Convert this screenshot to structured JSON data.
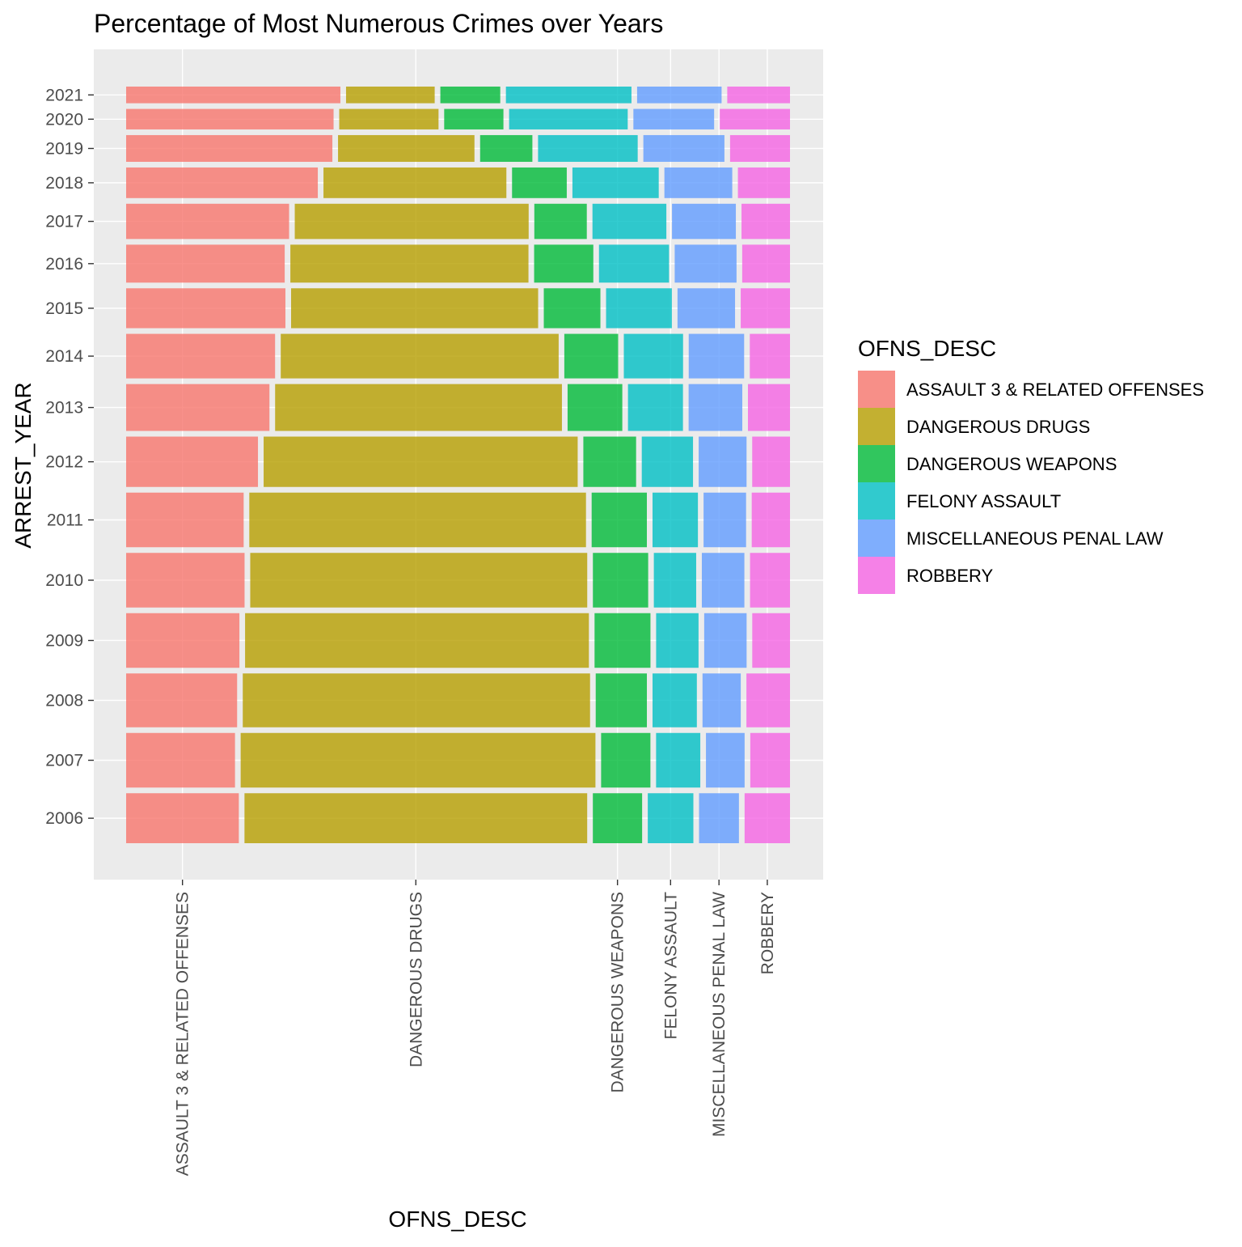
{
  "chart_data": {
    "type": "bar",
    "subtype": "mosaic",
    "title": "Percentage of Most Numerous Crimes over Years",
    "xlabel": "OFNS_DESC",
    "ylabel": "ARREST_YEAR",
    "grid": true,
    "legend": {
      "title": "OFNS_DESC",
      "placement": "right"
    },
    "categories": [
      "ASSAULT 3 & RELATED OFFENSES",
      "DANGEROUS DRUGS",
      "DANGEROUS WEAPONS",
      "FELONY ASSAULT",
      "MISCELLANEOUS PENAL LAW",
      "ROBBERY"
    ],
    "colors": [
      "#F8766D",
      "#B79F00",
      "#00BA38",
      "#00BFC4",
      "#619CFF",
      "#F564E3"
    ],
    "years": [
      "2006",
      "2007",
      "2008",
      "2009",
      "2010",
      "2011",
      "2012",
      "2013",
      "2014",
      "2015",
      "2016",
      "2017",
      "2018",
      "2019",
      "2020",
      "2021"
    ],
    "year_share_of_total": [
      0.0645,
      0.0705,
      0.0695,
      0.0705,
      0.0705,
      0.0705,
      0.065,
      0.0605,
      0.0575,
      0.0515,
      0.049,
      0.0455,
      0.0395,
      0.0345,
      0.0265,
      0.0215
    ],
    "series": [
      {
        "year": "2006",
        "values": [
          0.172,
          0.5231,
          0.0752,
          0.0696,
          0.0609,
          0.0693
        ]
      },
      {
        "year": "2007",
        "values": [
          0.1647,
          0.5368,
          0.0746,
          0.0669,
          0.0585,
          0.0601
        ]
      },
      {
        "year": "2008",
        "values": [
          0.1683,
          0.5267,
          0.0776,
          0.0672,
          0.058,
          0.0661
        ]
      },
      {
        "year": "2009",
        "values": [
          0.172,
          0.5221,
          0.0849,
          0.0644,
          0.0644,
          0.0573
        ]
      },
      {
        "year": "2010",
        "values": [
          0.1793,
          0.5102,
          0.0837,
          0.0641,
          0.0644,
          0.0605
        ]
      },
      {
        "year": "2011",
        "values": [
          0.1781,
          0.5103,
          0.0837,
          0.0688,
          0.0644,
          0.058
        ]
      },
      {
        "year": "2012",
        "values": [
          0.1999,
          0.4762,
          0.08,
          0.0777,
          0.0726,
          0.0573
        ]
      },
      {
        "year": "2013",
        "values": [
          0.2171,
          0.4345,
          0.0829,
          0.0833,
          0.0813,
          0.0637
        ]
      },
      {
        "year": "2014",
        "values": [
          0.2268,
          0.4232,
          0.082,
          0.0902,
          0.0844,
          0.0612
        ]
      },
      {
        "year": "2015",
        "values": [
          0.2414,
          0.3744,
          0.0858,
          0.0997,
          0.0872,
          0.0747
        ]
      },
      {
        "year": "2016",
        "values": [
          0.2408,
          0.3616,
          0.0899,
          0.1064,
          0.0939,
          0.0726
        ]
      },
      {
        "year": "2017",
        "values": [
          0.2481,
          0.3561,
          0.0799,
          0.1125,
          0.0972,
          0.0738
        ]
      },
      {
        "year": "2018",
        "values": [
          0.2907,
          0.2774,
          0.083,
          0.1309,
          0.1029,
          0.079
        ]
      },
      {
        "year": "2019",
        "values": [
          0.3129,
          0.207,
          0.0793,
          0.1512,
          0.123,
          0.0909
        ]
      },
      {
        "year": "2020",
        "values": [
          0.3144,
          0.1505,
          0.0898,
          0.1798,
          0.1224,
          0.1064
        ]
      },
      {
        "year": "2021",
        "values": [
          0.3251,
          0.1345,
          0.0909,
          0.1905,
          0.1282,
          0.0952
        ]
      }
    ]
  }
}
